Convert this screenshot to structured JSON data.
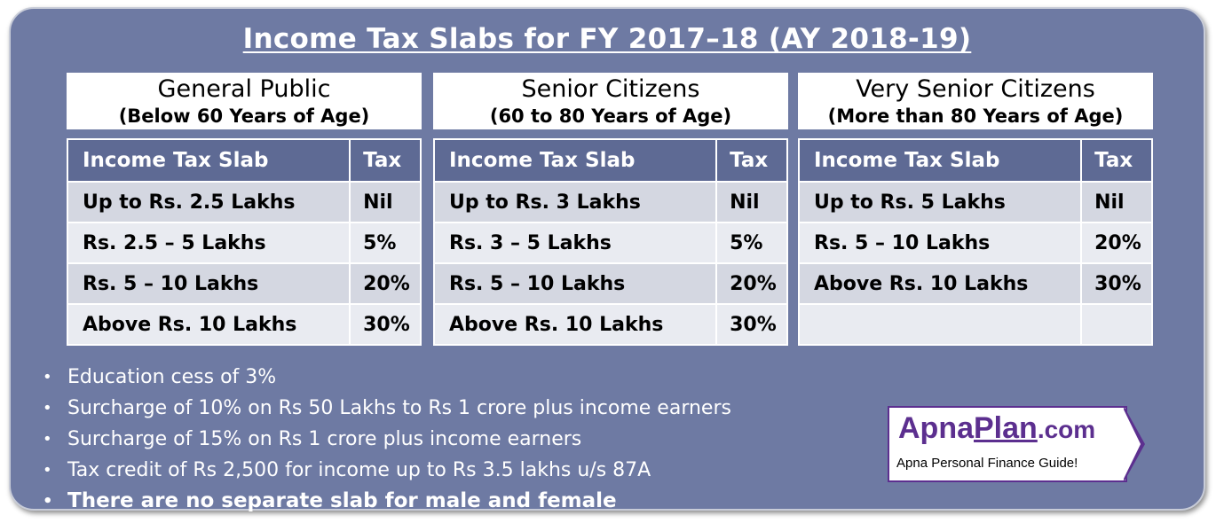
{
  "title": "Income Tax Slabs for FY 2017–18 (AY 2018-19)",
  "groups": [
    {
      "name": "General Public",
      "sub": "(Below 60 Years of Age)",
      "col1": "Income Tax Slab",
      "col2": "Tax",
      "rows": [
        {
          "slab": "Up to Rs. 2.5 Lakhs",
          "tax": "Nil"
        },
        {
          "slab": "Rs. 2.5 – 5 Lakhs",
          "tax": "5%"
        },
        {
          "slab": "Rs. 5 – 10 Lakhs",
          "tax": "20%"
        },
        {
          "slab": "Above Rs. 10 Lakhs",
          "tax": "30%"
        }
      ]
    },
    {
      "name": "Senior Citizens",
      "sub": "(60 to 80 Years of Age)",
      "col1": "Income Tax Slab",
      "col2": "Tax",
      "rows": [
        {
          "slab": "Up to Rs. 3 Lakhs",
          "tax": "Nil"
        },
        {
          "slab": "Rs. 3 – 5 Lakhs",
          "tax": "5%"
        },
        {
          "slab": "Rs. 5 – 10 Lakhs",
          "tax": "20%"
        },
        {
          "slab": "Above Rs. 10 Lakhs",
          "tax": "30%"
        }
      ]
    },
    {
      "name": "Very Senior Citizens",
      "sub": "(More than 80 Years of Age)",
      "col1": "Income Tax Slab",
      "col2": "Tax",
      "rows": [
        {
          "slab": "Up to Rs. 5 Lakhs",
          "tax": "Nil"
        },
        {
          "slab": "Rs. 5 – 10 Lakhs",
          "tax": "20%"
        },
        {
          "slab": "Above Rs. 10 Lakhs",
          "tax": "30%"
        },
        {
          "slab": "",
          "tax": ""
        }
      ]
    }
  ],
  "bullets": [
    "Education cess of 3%",
    "Surcharge of 10% on Rs 50 Lakhs to Rs 1 crore plus income earners",
    "Surcharge of 15% on Rs 1 crore plus income earners",
    "Tax credit of Rs 2,500 for income up to Rs 3.5 lakhs u/s 87A",
    "There are no separate slab for male and female"
  ],
  "bullet_glyph": "•",
  "logo": {
    "part1": "Apna",
    "part2": "Plan",
    "part3": ".com",
    "tagline": "Apna Personal Finance Guide!",
    "color": "#5c2f8f"
  },
  "colors": {
    "panel": "#6e7aa3",
    "header_row": "#5e6a94",
    "row_dark": "#d4d7e1",
    "row_light": "#e9ebf1"
  }
}
